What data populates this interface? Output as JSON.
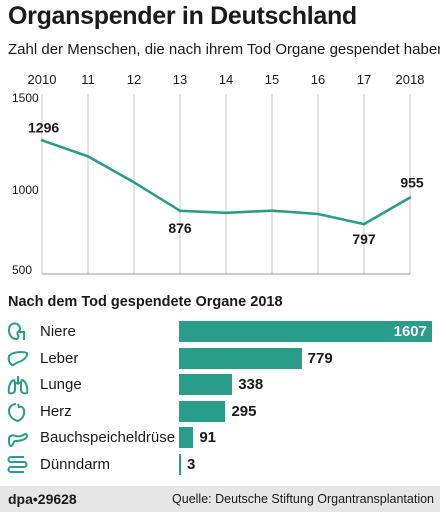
{
  "title": "Organspender in Deutschland",
  "subtitle": "Zahl der Menschen, die nach ihrem Tod Organe gespendet haben",
  "chart_data": [
    {
      "type": "line",
      "x": [
        2010,
        2011,
        2012,
        2013,
        2014,
        2015,
        2016,
        2017,
        2018
      ],
      "x_tick_labels": [
        "2010",
        "11",
        "12",
        "13",
        "14",
        "15",
        "16",
        "17",
        "2018"
      ],
      "series": [
        {
          "values": [
            1296,
            1200,
            1046,
            876,
            864,
            877,
            857,
            797,
            955
          ]
        }
      ],
      "data_labels": [
        {
          "index": 0,
          "text": "1296"
        },
        {
          "index": 3,
          "text": "876"
        },
        {
          "index": 7,
          "text": "797"
        },
        {
          "index": 8,
          "text": "955"
        }
      ],
      "y_ticks": [
        1500,
        1000,
        500
      ],
      "ylim": [
        500,
        1500
      ],
      "grid": "vertical",
      "line_color": "#2a9d8a"
    },
    {
      "type": "bar",
      "orientation": "horizontal",
      "title": "Nach dem Tod gespendete Organe 2018",
      "categories": [
        "Niere",
        "Leber",
        "Lunge",
        "Herz",
        "Bauchspeicheldrüse",
        "Dünndarm"
      ],
      "values": [
        1607,
        779,
        338,
        295,
        91,
        3
      ],
      "icons": [
        "kidney-icon",
        "liver-icon",
        "lungs-icon",
        "heart-icon",
        "pancreas-icon",
        "intestine-icon"
      ],
      "bar_color": "#2a9d8a",
      "xlim": [
        0,
        1607
      ]
    }
  ],
  "footer": {
    "brand": "dpa•29628",
    "source": "Quelle: Deutsche Stiftung Organtransplantation"
  }
}
